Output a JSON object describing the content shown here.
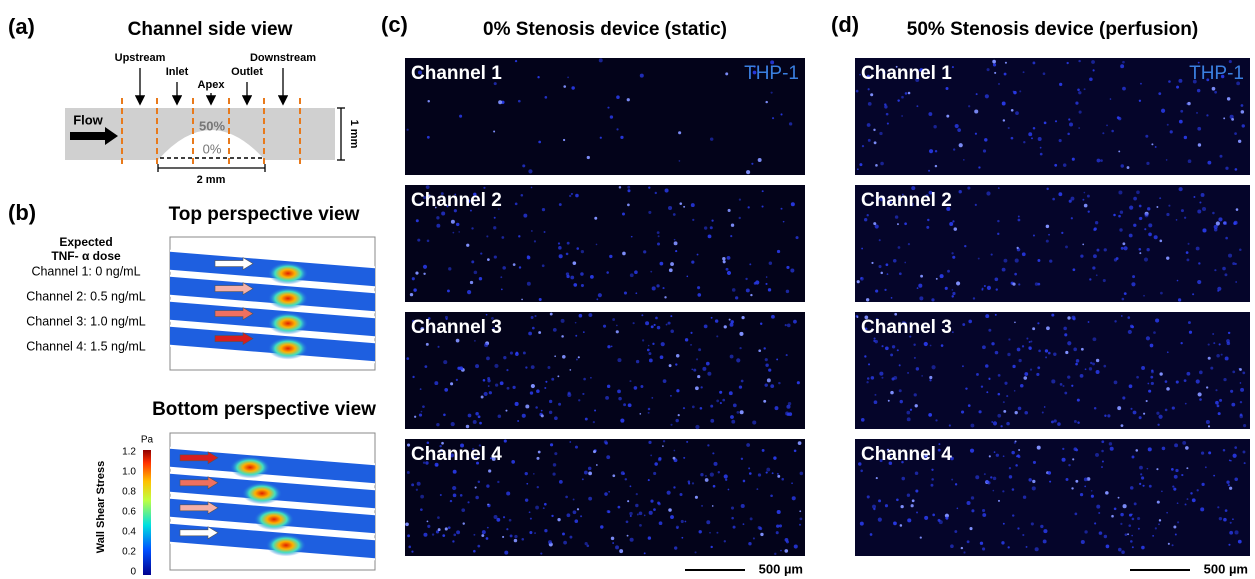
{
  "panel_a": {
    "label": "(a)",
    "title": "Channel side view",
    "regions": [
      "Upstream",
      "Inlet",
      "Apex",
      "Outlet",
      "Downstream"
    ],
    "flow": "Flow",
    "stenosis_labels": [
      "50%",
      "0%"
    ],
    "height": "1 mm",
    "length": "2 mm"
  },
  "panel_b": {
    "label": "(b)",
    "top_title": "Top perspective view",
    "dose_heading": [
      "Expected",
      "TNF- α dose"
    ],
    "doses": [
      "Channel 1: 0 ng/mL",
      "Channel 2: 0.5 ng/mL",
      "Channel 3: 1.0 ng/mL",
      "Channel 4: 1.5 ng/mL"
    ],
    "bottom_title": "Bottom perspective view",
    "colorbar": {
      "unit": "Pa",
      "title": "Wall Shear Stress",
      "ticks": [
        "1.2",
        "1.0",
        "0.8",
        "0.6",
        "0.4",
        "0.2",
        "0"
      ]
    }
  },
  "panel_c": {
    "label": "(c)",
    "title": "0% Stenosis device (static)",
    "channels": [
      "Channel 1",
      "Channel 2",
      "Channel 3",
      "Channel 4"
    ],
    "stain": "THP-1",
    "scale_bar": "500 µm"
  },
  "panel_d": {
    "label": "(d)",
    "title": "50% Stenosis device (perfusion)",
    "channels": [
      "Channel 1",
      "Channel 2",
      "Channel 3",
      "Channel 4"
    ],
    "stain": "THP-1",
    "scale_bar": "500 µm"
  }
}
